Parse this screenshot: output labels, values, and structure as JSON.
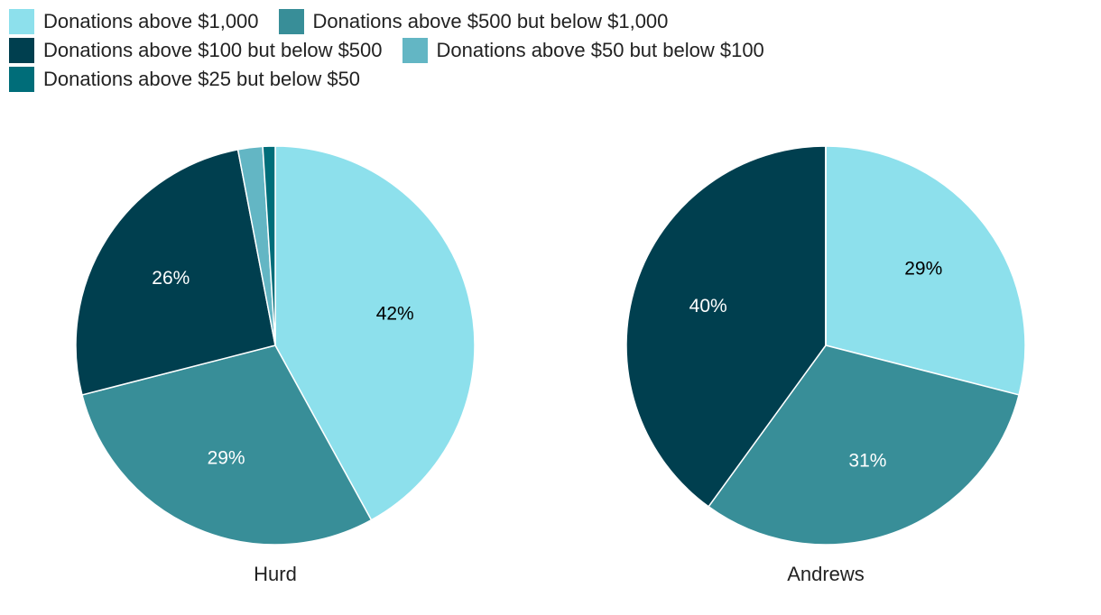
{
  "chart_data": {
    "type": "pie",
    "categories": [
      "Donations above $1,000",
      "Donations above $500 but below $1,000",
      "Donations above $100 but below $500",
      "Donations above $50 but below $100",
      "Donations above $25 but below $50"
    ],
    "colors": [
      "#8de0ec",
      "#388e98",
      "#003f4f",
      "#63b6c4",
      "#006d79"
    ],
    "series": [
      {
        "name": "Hurd",
        "values": [
          42,
          29,
          26,
          2,
          1
        ],
        "value_labels": [
          "42%",
          "29%",
          "26%",
          null,
          null
        ]
      },
      {
        "name": "Andrews",
        "values": [
          29,
          31,
          40,
          0,
          0
        ],
        "value_labels": [
          "29%",
          "31%",
          "40%",
          null,
          null
        ]
      }
    ]
  }
}
